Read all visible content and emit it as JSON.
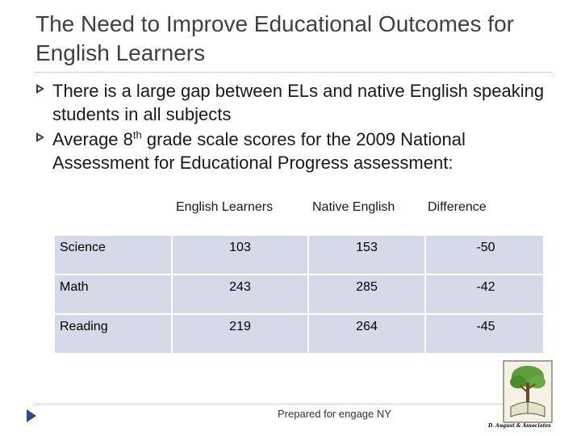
{
  "slide": {
    "title": "The Need to Improve Educational Outcomes for English Learners",
    "bullets": [
      {
        "text": "There is a large gap between ELs and native English speaking students in all subjects"
      },
      {
        "text_before": "Average 8",
        "superscript": "th",
        "text_after": " grade scale scores for the 2009 National Assessment for Educational Progress assessment:"
      }
    ]
  },
  "table": {
    "headers": [
      "English Learners",
      "Native English",
      "Difference"
    ],
    "rows": [
      {
        "subject": "Science",
        "english_learners": "103",
        "native_english": "153",
        "difference": "-50"
      },
      {
        "subject": "Math",
        "english_learners": "243",
        "native_english": "285",
        "difference": "-42"
      },
      {
        "subject": "Reading",
        "english_learners": "219",
        "native_english": "264",
        "difference": "-45"
      }
    ]
  },
  "footer": {
    "text": "Prepared for engage NY",
    "logo_caption": "D. August & Associates"
  },
  "colors": {
    "table_cell": "#d6d9e7",
    "nav_arrow": "#2c4a8c",
    "bullet": "#3c3c3c"
  },
  "icons": {
    "bullet": "bullet-icon",
    "nav": "nav-arrow-icon",
    "logo": "tree-logo-icon"
  }
}
